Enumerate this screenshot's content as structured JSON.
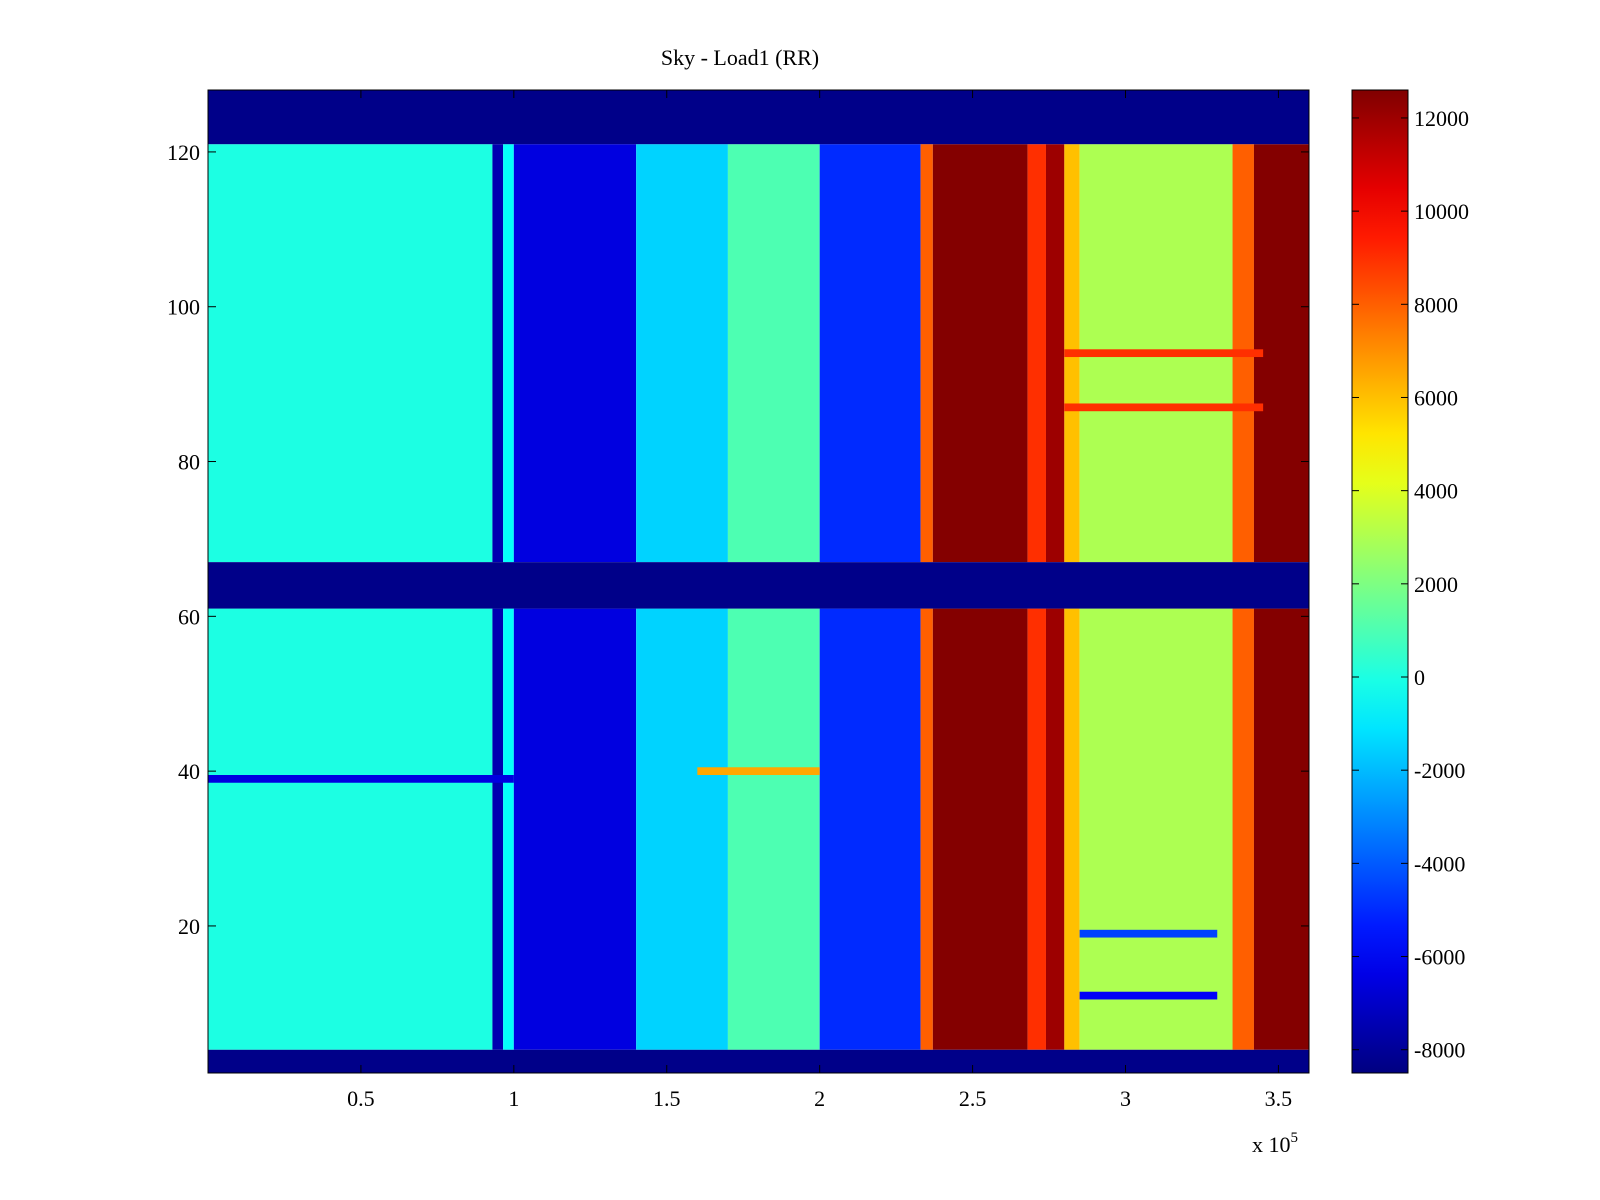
{
  "chart_data": {
    "type": "heatmap",
    "title": "Sky - Load1 (RR)",
    "xlabel": "",
    "ylabel": "",
    "x_scale_note": "x 10",
    "x_scale_exponent": "5",
    "xlim": [
      0,
      3.6
    ],
    "ylim": [
      1,
      128
    ],
    "x_ticks": [
      {
        "value": 0.5,
        "label": "0.5"
      },
      {
        "value": 1,
        "label": "1"
      },
      {
        "value": 1.5,
        "label": "1.5"
      },
      {
        "value": 2,
        "label": "2"
      },
      {
        "value": 2.5,
        "label": "2.5"
      },
      {
        "value": 3,
        "label": "3"
      },
      {
        "value": 3.5,
        "label": "3.5"
      }
    ],
    "y_ticks": [
      {
        "value": 20,
        "label": "20"
      },
      {
        "value": 40,
        "label": "40"
      },
      {
        "value": 60,
        "label": "60"
      },
      {
        "value": 80,
        "label": "80"
      },
      {
        "value": 100,
        "label": "100"
      },
      {
        "value": 120,
        "label": "120"
      }
    ],
    "colorbar": {
      "colormap": "jet",
      "clim": [
        -8500,
        12600
      ],
      "ticks": [
        {
          "value": 12000,
          "label": "12000"
        },
        {
          "value": 10000,
          "label": "10000"
        },
        {
          "value": 8000,
          "label": "8000"
        },
        {
          "value": 6000,
          "label": "6000"
        },
        {
          "value": 4000,
          "label": "4000"
        },
        {
          "value": 2000,
          "label": "2000"
        },
        {
          "value": 0,
          "label": "0"
        },
        {
          "value": -2000,
          "label": "-2000"
        },
        {
          "value": -4000,
          "label": "-4000"
        },
        {
          "value": -6000,
          "label": "-6000"
        },
        {
          "value": -8000,
          "label": "-8000"
        }
      ]
    },
    "masked_rows": [
      [
        1,
        4
      ],
      [
        61,
        67
      ],
      [
        121,
        128
      ]
    ],
    "column_profile": [
      {
        "x_start": 0.0,
        "x_end": 0.93,
        "value": 0
      },
      {
        "x_start": 0.93,
        "x_end": 0.965,
        "value": -7500
      },
      {
        "x_start": 0.965,
        "x_end": 1.0,
        "value": -500
      },
      {
        "x_start": 1.0,
        "x_end": 1.4,
        "value": -6500
      },
      {
        "x_start": 1.4,
        "x_end": 1.7,
        "value": -1500
      },
      {
        "x_start": 1.7,
        "x_end": 2.0,
        "value": 1000
      },
      {
        "x_start": 2.0,
        "x_end": 2.33,
        "value": -5000
      },
      {
        "x_start": 2.33,
        "x_end": 2.37,
        "value": 8000
      },
      {
        "x_start": 2.37,
        "x_end": 2.68,
        "value": 12500
      },
      {
        "x_start": 2.68,
        "x_end": 2.74,
        "value": 9000
      },
      {
        "x_start": 2.74,
        "x_end": 2.8,
        "value": 12000
      },
      {
        "x_start": 2.8,
        "x_end": 2.85,
        "value": 6000
      },
      {
        "x_start": 2.85,
        "x_end": 3.35,
        "value": 3000
      },
      {
        "x_start": 3.35,
        "x_end": 3.42,
        "value": 8000
      },
      {
        "x_start": 3.42,
        "x_end": 3.6,
        "value": 12500
      }
    ],
    "row_features": [
      {
        "y": 39,
        "x_start": 0.0,
        "x_end": 1.0,
        "value": -6500
      },
      {
        "y": 40,
        "x_start": 1.6,
        "x_end": 2.0,
        "value": 6500
      },
      {
        "y": 19,
        "x_start": 2.85,
        "x_end": 3.3,
        "value": -4500
      },
      {
        "y": 11,
        "x_start": 2.85,
        "x_end": 3.3,
        "value": -6000
      },
      {
        "y": 94,
        "x_start": 2.8,
        "x_end": 3.45,
        "value": 9000
      },
      {
        "y": 87,
        "x_start": 2.8,
        "x_end": 3.45,
        "value": 9000
      }
    ]
  }
}
